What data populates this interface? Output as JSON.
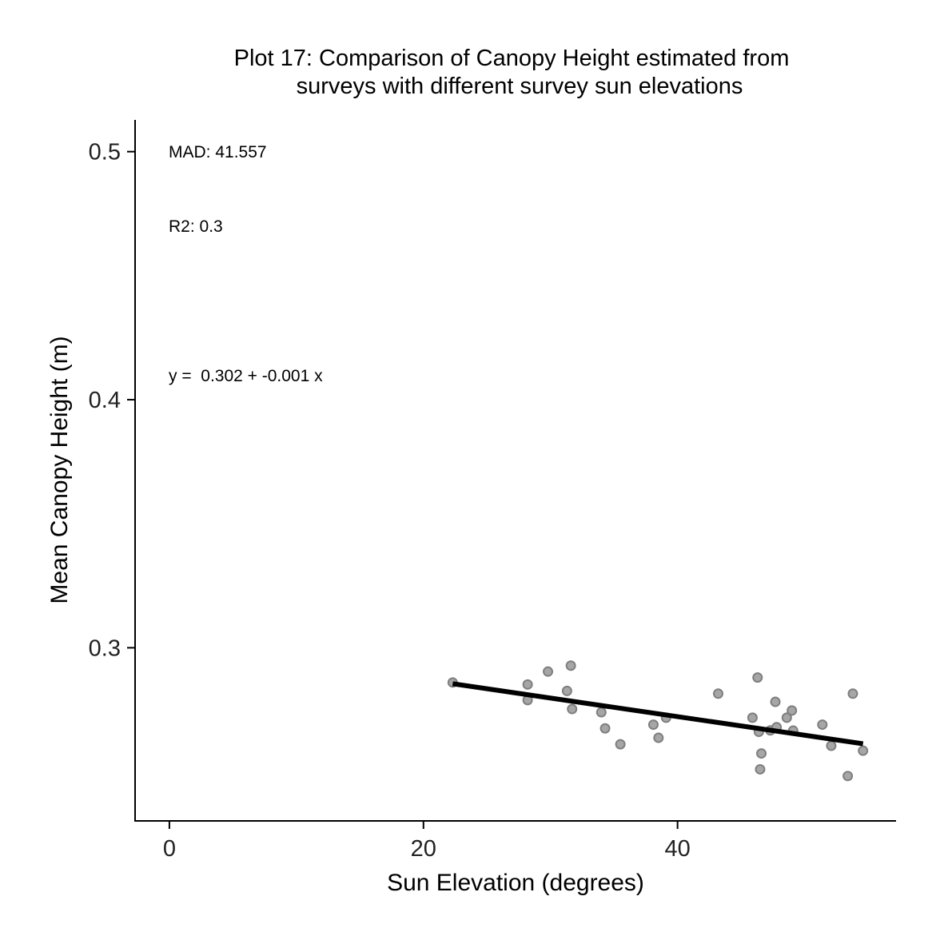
{
  "chart_data": {
    "type": "scatter",
    "title": "Plot 17: Comparison of Canopy Height estimated from",
    "subtitle": "surveys with different survey sun elevations",
    "xlabel": "Sun Elevation (degrees)",
    "ylabel": "Mean Canopy Height (m)",
    "xlim": [
      -2.7,
      57.2
    ],
    "ylim": [
      0.2302,
      0.5128
    ],
    "x_ticks": [
      0,
      20,
      40
    ],
    "x_tick_labels": [
      "0",
      "20",
      "40"
    ],
    "y_ticks": [
      0.3,
      0.4,
      0.5
    ],
    "y_tick_labels": [
      "0.3",
      "0.4",
      "0.5"
    ],
    "grid": false,
    "legend": "none",
    "annotations": {
      "mad": "MAD: 41.557",
      "r2": "R2: 0.3",
      "equation": "y =  0.302 + -0.001 x"
    },
    "fit_line": {
      "x": [
        22.3,
        54.6
      ],
      "y": [
        0.2855,
        0.2613
      ]
    },
    "point_color": "#a6a6a6",
    "line_color": "#000000",
    "x": [
      22.3,
      28.2,
      28.2,
      29.8,
      31.3,
      31.6,
      31.7,
      34.0,
      34.3,
      35.5,
      38.1,
      38.5,
      39.1,
      43.2,
      45.9,
      46.3,
      46.4,
      46.5,
      46.6,
      47.3,
      47.7,
      47.8,
      48.6,
      49.0,
      49.1,
      51.4,
      52.1,
      53.4,
      53.8,
      54.6
    ],
    "y": [
      0.286,
      0.2852,
      0.2789,
      0.2904,
      0.2826,
      0.2928,
      0.2753,
      0.274,
      0.2675,
      0.2611,
      0.269,
      0.2637,
      0.2718,
      0.2815,
      0.2718,
      0.288,
      0.2661,
      0.251,
      0.2574,
      0.2667,
      0.2782,
      0.268,
      0.2718,
      0.2747,
      0.2666,
      0.269,
      0.2605,
      0.2483,
      0.2815,
      0.2585
    ]
  }
}
